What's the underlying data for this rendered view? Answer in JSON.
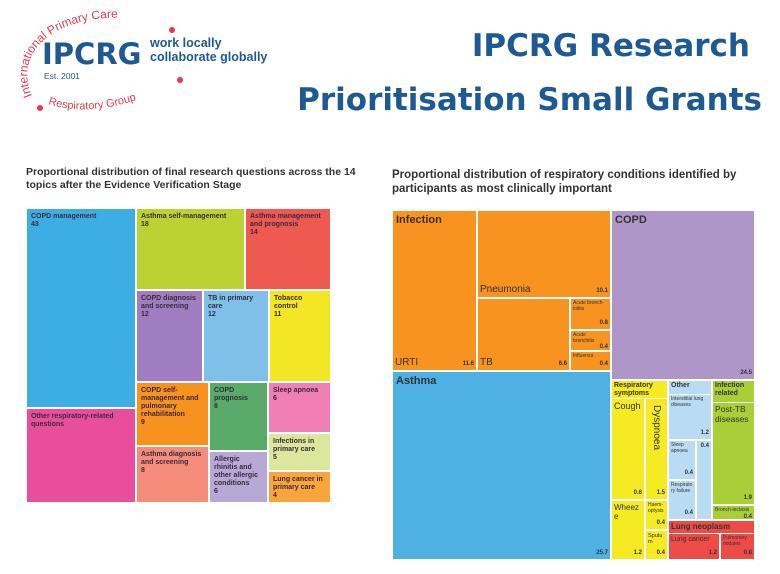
{
  "logo": {
    "acronym": "IPCRG",
    "arc_top": "International Primary Care",
    "arc_bottom": "Respiratory Group",
    "established": "Est. 2001",
    "tagline_1": "work locally",
    "tagline_2": "collaborate globally",
    "blue": "#1d5a94",
    "red": "#e83a4a"
  },
  "header": {
    "title_line1": "IPCRG Research",
    "title_line2": "Prioritisation Small Grants"
  },
  "chart_data": [
    {
      "type": "treemap",
      "title": "Proportional distribution of final research questions across the 14 topics after the Evidence Verification Stage",
      "items": [
        {
          "label": "COPD management",
          "value": 43,
          "color": "#3daee3"
        },
        {
          "label": "Asthma self-management",
          "value": 18,
          "color": "#bcd232"
        },
        {
          "label": "Asthma management and prognosis",
          "value": 14,
          "color": "#ef5a50"
        },
        {
          "label": "COPD diagnosis and screening",
          "value": 12,
          "color": "#a07cc0"
        },
        {
          "label": "TB in primary care",
          "value": 12,
          "color": "#7fc0e8"
        },
        {
          "label": "Tobacco control",
          "value": 11,
          "color": "#f3e624"
        },
        {
          "label": "COPD self-management and pulmonary rehabilitation",
          "value": 9,
          "color": "#f7921e"
        },
        {
          "label": "COPD prognosis",
          "value": 8,
          "color": "#5aab6a"
        },
        {
          "label": "Sleep apnoea",
          "value": 6,
          "color": "#f07fb6"
        },
        {
          "label": "Infections in primary care",
          "value": 5,
          "color": "#dbe79a"
        },
        {
          "label": "Lung cancer in primary care",
          "value": 4,
          "color": "#f9a53c"
        },
        {
          "label": "Other respiratory-related questions",
          "value": null,
          "color": "#e84e9c"
        },
        {
          "label": "Asthma diagnosis and screening",
          "value": 8,
          "color": "#f58d7a"
        },
        {
          "label": "Allergic rhinitis and other allergic conditions",
          "value": 6,
          "color": "#b8a8d6"
        }
      ]
    },
    {
      "type": "treemap",
      "title": "Proportional distribution of respiratory conditions identified by participants as most clinically important",
      "groups": [
        {
          "name": "Infection",
          "color": "#f7931e",
          "items": [
            {
              "label": "URTI",
              "value": 11.6
            },
            {
              "label": "Pneumonia",
              "value": 10.1
            },
            {
              "label": "TB",
              "value": 6.6
            },
            {
              "label": "Acute bronch-iolitis",
              "value": 0.8
            },
            {
              "label": "Acute bronchitis",
              "value": 0.4
            },
            {
              "label": "Influenza",
              "value": 0.4
            }
          ]
        },
        {
          "name": "COPD",
          "color": "#ae97c8",
          "items": [
            {
              "label": "",
              "value": 24.5
            }
          ]
        },
        {
          "name": "Asthma",
          "color": "#4fb1e3",
          "items": [
            {
              "label": "",
              "value": 25.7
            }
          ]
        },
        {
          "name": "Respiratory symptoms",
          "color": "#f6ea23",
          "items": [
            {
              "label": "Cough",
              "value": 0.6
            },
            {
              "label": "Dyspnoea",
              "value": 1.5
            },
            {
              "label": "Wheeze",
              "value": 1.2
            },
            {
              "label": "Haem-optysis",
              "value": 0.4
            },
            {
              "label": "Sputum",
              "value": 0.4
            }
          ]
        },
        {
          "name": "Other",
          "color": "#b9dbf3",
          "items": [
            {
              "label": "Interstitial lung diseases",
              "value": 1.2
            },
            {
              "label": "Sleep apnoea",
              "value": 0.4
            },
            {
              "label": "Respiratory failure",
              "value": 0.4
            },
            {
              "label": "",
              "value": 0.4
            }
          ]
        },
        {
          "name": "Infection related",
          "color": "#a9cf38",
          "items": [
            {
              "label": "Post-TB diseases",
              "value": 1.9
            },
            {
              "label": "Bronch-iectasis",
              "value": 0.4
            }
          ]
        },
        {
          "name": "Lung neoplasm",
          "color": "#ee4b46",
          "items": [
            {
              "label": "Lung cancer",
              "value": 1.2
            },
            {
              "label": "Pulmonary nodules",
              "value": 0.8
            }
          ]
        }
      ]
    }
  ]
}
